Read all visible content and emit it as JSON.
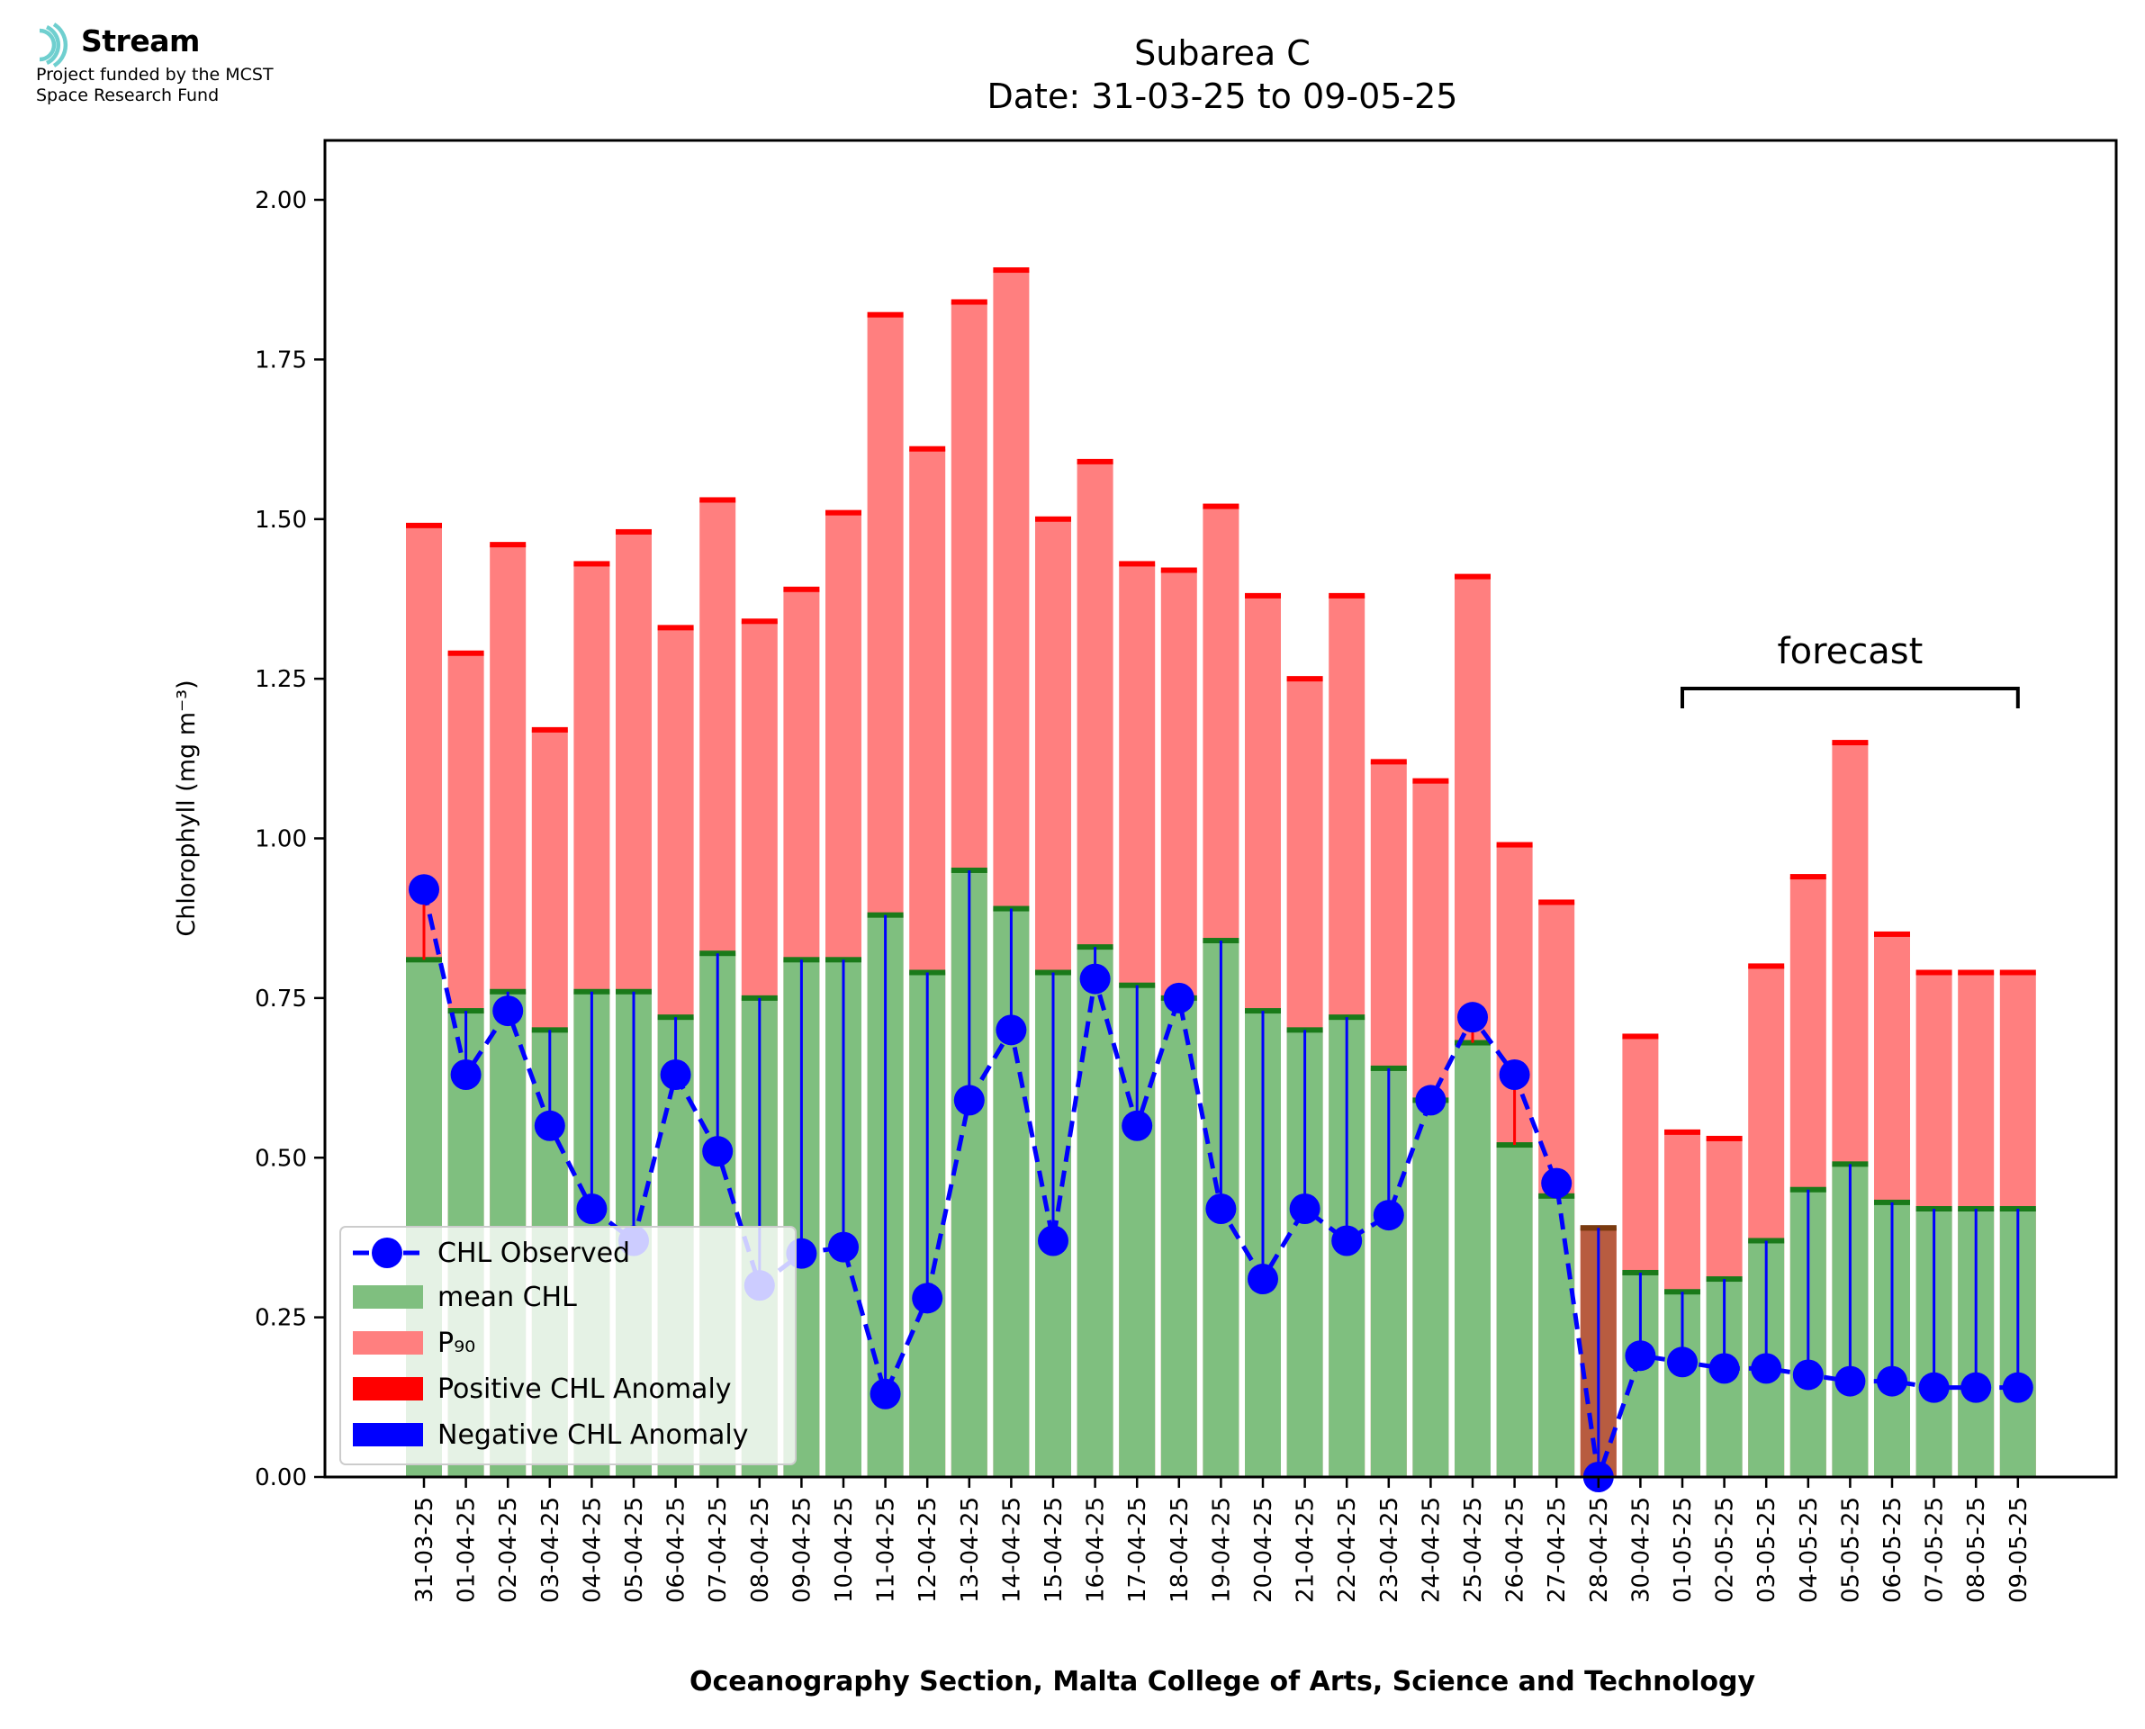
{
  "logo": {
    "name": "Stream",
    "line1": "Project funded by the MCST",
    "line2": "Space Research Fund",
    "colors": {
      "ring": "#6fcfcf"
    }
  },
  "chart_data": {
    "type": "bar",
    "title": "Subarea C",
    "subtitle": "Date: 31-03-25 to 09-05-25",
    "xlabel": "Oceanography Section, Malta College of Arts, Science and Technology",
    "ylabel": "Chlorophyll (mg m⁻³)",
    "ylim": [
      0,
      2.09
    ],
    "yticks": [
      "0.00",
      "0.25",
      "0.50",
      "0.75",
      "1.00",
      "1.25",
      "1.50",
      "1.75",
      "2.00"
    ],
    "categories": [
      "31-03-25",
      "01-04-25",
      "02-04-25",
      "03-04-25",
      "04-04-25",
      "05-04-25",
      "06-04-25",
      "07-04-25",
      "08-04-25",
      "09-04-25",
      "10-04-25",
      "11-04-25",
      "12-04-25",
      "13-04-25",
      "14-04-25",
      "15-04-25",
      "16-04-25",
      "17-04-25",
      "18-04-25",
      "19-04-25",
      "20-04-25",
      "21-04-25",
      "22-04-25",
      "23-04-25",
      "24-04-25",
      "25-04-25",
      "26-04-25",
      "27-04-25",
      "28-04-25",
      "30-04-25",
      "01-05-25",
      "02-05-25",
      "03-05-25",
      "04-05-25",
      "05-05-25",
      "06-05-25",
      "07-05-25",
      "08-05-25",
      "09-05-25"
    ],
    "series": [
      {
        "name": "mean CHL",
        "values": [
          0.81,
          0.73,
          0.76,
          0.7,
          0.76,
          0.76,
          0.72,
          0.82,
          0.75,
          0.81,
          0.81,
          0.88,
          0.79,
          0.95,
          0.89,
          0.79,
          0.83,
          0.77,
          0.75,
          0.84,
          0.73,
          0.7,
          0.72,
          0.64,
          0.59,
          0.68,
          0.52,
          0.44,
          0.39,
          0.32,
          0.29,
          0.31,
          0.37,
          0.45,
          0.49,
          0.43,
          0.42,
          0.42,
          0.42
        ]
      },
      {
        "name": "P₉₀",
        "values": [
          1.49,
          1.29,
          1.46,
          1.17,
          1.43,
          1.48,
          1.33,
          1.53,
          1.34,
          1.39,
          1.51,
          1.82,
          1.61,
          1.84,
          1.89,
          1.5,
          1.59,
          1.43,
          1.42,
          1.52,
          1.38,
          1.25,
          1.38,
          1.12,
          1.09,
          1.41,
          0.99,
          0.9,
          0.39,
          0.69,
          0.54,
          0.53,
          0.8,
          0.94,
          1.15,
          0.85,
          0.79,
          0.79,
          0.79
        ]
      },
      {
        "name": "CHL Observed",
        "values": [
          0.92,
          0.63,
          0.73,
          0.55,
          0.42,
          0.37,
          0.63,
          0.51,
          0.3,
          0.35,
          0.36,
          0.13,
          0.28,
          0.59,
          0.7,
          0.37,
          0.78,
          0.55,
          0.75,
          0.42,
          0.31,
          0.42,
          0.37,
          0.41,
          0.59,
          0.72,
          0.63,
          0.46,
          0.0,
          0.19,
          0.18,
          0.17,
          0.17,
          0.16,
          0.15,
          0.15,
          0.14,
          0.14,
          0.14
        ]
      }
    ],
    "legend": {
      "placement": "lower-left",
      "entries": [
        "CHL Observed",
        "mean CHL",
        "P₉₀",
        "Positive CHL Anomaly",
        "Negative CHL Anomaly"
      ]
    },
    "annotations": {
      "forecast_label": "forecast",
      "forecast_start": "01-05-25",
      "forecast_end": "09-05-25"
    },
    "colors": {
      "mean": "#7fbf7f",
      "mean_cap": "#1a7a1a",
      "p90": "#ff7f7f",
      "p90_cap": "#ff0000",
      "observed": "#0000ff",
      "pos_anomaly": "#ff0000",
      "neg_anomaly": "#0000ff",
      "overlap": "#b85c40",
      "overlap_cap": "#7a3a10"
    },
    "grid": false
  }
}
